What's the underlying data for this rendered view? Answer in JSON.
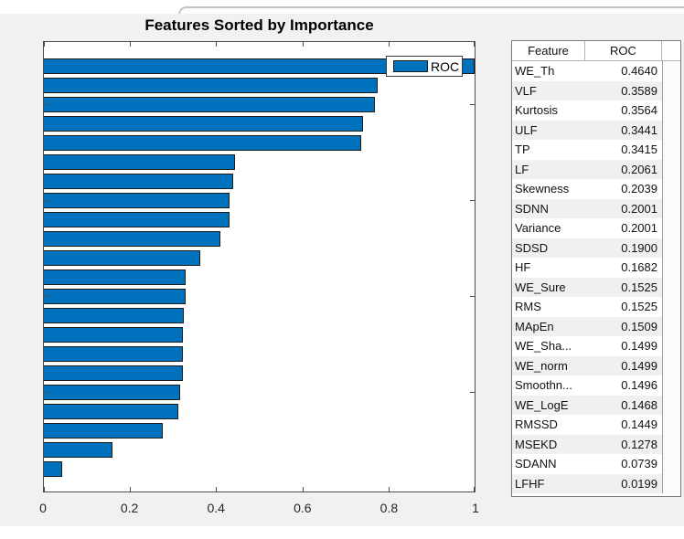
{
  "figure": {
    "title": "Features Sorted by Importance"
  },
  "legend": {
    "label": "ROC"
  },
  "chart_data": {
    "type": "bar",
    "orientation": "horizontal",
    "title": "Features Sorted by Importance",
    "categories": [
      "WE_Th",
      "VLF",
      "Kurtosis",
      "ULF",
      "TP",
      "LF",
      "Skewness",
      "SDNN",
      "Variance",
      "SDSD",
      "HF",
      "WE_Sure",
      "RMS",
      "MApEn",
      "WE_Sha...",
      "WE_norm",
      "Smoothn...",
      "WE_LogE",
      "RMSSD",
      "MSEKD",
      "SDANN",
      "LFHF"
    ],
    "values": [
      1.0,
      0.774,
      0.768,
      0.742,
      0.736,
      0.444,
      0.439,
      0.431,
      0.431,
      0.409,
      0.362,
      0.329,
      0.329,
      0.325,
      0.323,
      0.323,
      0.322,
      0.316,
      0.312,
      0.275,
      0.159,
      0.043
    ],
    "legend_entries": [
      "ROC"
    ],
    "legend_position": "northeast-inside",
    "xlim": [
      0,
      1
    ],
    "xticks": [
      0,
      0.2,
      0.4,
      0.6,
      0.8,
      1
    ],
    "xtick_labels": [
      "0",
      "0.2",
      "0.4",
      "0.6",
      "0.8",
      "1"
    ],
    "ytick_rows_from_top": [
      3,
      8,
      13,
      18
    ],
    "grid": false
  },
  "table": {
    "headers": [
      "Feature",
      "ROC"
    ],
    "rows": [
      {
        "feature": "WE_Th",
        "roc": "0.4640"
      },
      {
        "feature": "VLF",
        "roc": "0.3589"
      },
      {
        "feature": "Kurtosis",
        "roc": "0.3564"
      },
      {
        "feature": "ULF",
        "roc": "0.3441"
      },
      {
        "feature": "TP",
        "roc": "0.3415"
      },
      {
        "feature": "LF",
        "roc": "0.2061"
      },
      {
        "feature": "Skewness",
        "roc": "0.2039"
      },
      {
        "feature": "SDNN",
        "roc": "0.2001"
      },
      {
        "feature": "Variance",
        "roc": "0.2001"
      },
      {
        "feature": "SDSD",
        "roc": "0.1900"
      },
      {
        "feature": "HF",
        "roc": "0.1682"
      },
      {
        "feature": "WE_Sure",
        "roc": "0.1525"
      },
      {
        "feature": "RMS",
        "roc": "0.1525"
      },
      {
        "feature": "MApEn",
        "roc": "0.1509"
      },
      {
        "feature": "WE_Sha...",
        "roc": "0.1499"
      },
      {
        "feature": "WE_norm",
        "roc": "0.1499"
      },
      {
        "feature": "Smoothn...",
        "roc": "0.1496"
      },
      {
        "feature": "WE_LogE",
        "roc": "0.1468"
      },
      {
        "feature": "RMSSD",
        "roc": "0.1449"
      },
      {
        "feature": "MSEKD",
        "roc": "0.1278"
      },
      {
        "feature": "SDANN",
        "roc": "0.0739"
      },
      {
        "feature": "LFHF",
        "roc": "0.0199"
      }
    ]
  },
  "colors": {
    "bar_fill": "#0072BD",
    "bar_edge": "#1d1d1d",
    "figure_bg": "#f1f1f1",
    "row_stripe": "#f0f0f2",
    "axis_line": "#4d4d4d"
  }
}
